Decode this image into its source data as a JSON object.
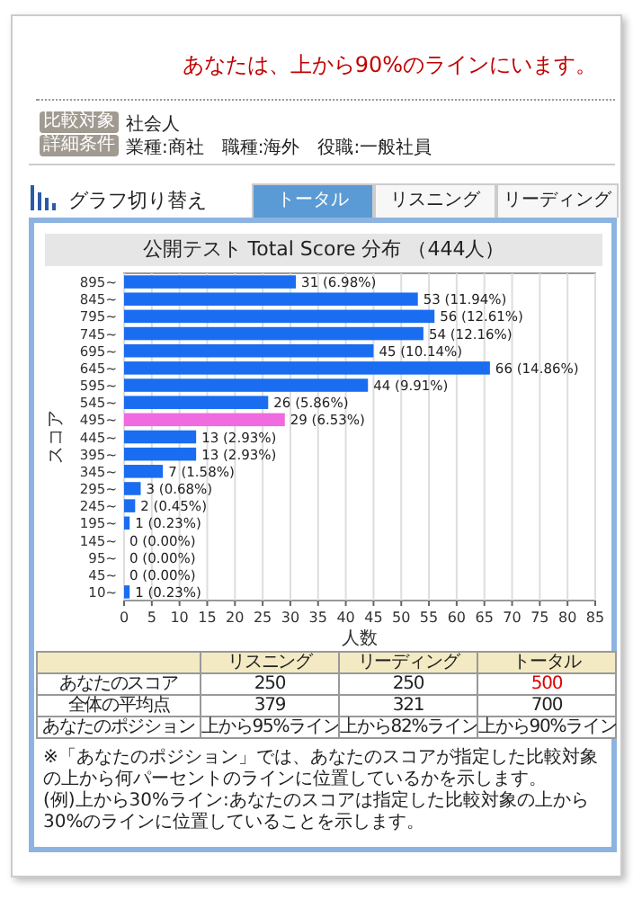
{
  "chart_data": {
    "type": "bar",
    "orientation": "horizontal",
    "title": "公開テスト Total Score 分布 （444人）",
    "xlabel": "人数",
    "ylabel": "スコア",
    "categories": [
      "895~",
      "845~",
      "795~",
      "745~",
      "695~",
      "645~",
      "595~",
      "545~",
      "495~",
      "445~",
      "395~",
      "345~",
      "295~",
      "245~",
      "195~",
      "145~",
      "95~",
      "45~",
      "10~"
    ],
    "values": [
      31,
      53,
      56,
      54,
      45,
      66,
      44,
      26,
      29,
      13,
      13,
      7,
      3,
      2,
      1,
      0,
      0,
      0,
      1
    ],
    "colors": [
      "#1a6df0",
      "#1a6df0",
      "#1a6df0",
      "#1a6df0",
      "#1a6df0",
      "#1a6df0",
      "#1a6df0",
      "#1a6df0",
      "#f06ae0",
      "#1a6df0",
      "#1a6df0",
      "#1a6df0",
      "#1a6df0",
      "#1a6df0",
      "#1a6df0",
      "#1a6df0",
      "#1a6df0",
      "#1a6df0",
      "#1a6df0"
    ],
    "value_labels": [
      "31 (6.98%)",
      "53 (11.94%)",
      "56 (12.61%)",
      "54 (12.16%)",
      "45 (10.14%)",
      "66 (14.86%)",
      "44 (9.91%)",
      "26 (5.86%)",
      "29 (6.53%)",
      "13 (2.93%)",
      "13 (2.93%)",
      "7 (1.58%)",
      "3 (0.68%)",
      "2 (0.45%)",
      "1 (0.23%)",
      "0 (0.00%)",
      "0 (0.00%)",
      "0 (0.00%)",
      "1 (0.23%)"
    ],
    "xlim": [
      0,
      85
    ],
    "xticks": [
      0,
      5,
      10,
      15,
      20,
      25,
      30,
      35,
      40,
      45,
      50,
      55,
      60,
      65,
      70,
      75,
      80,
      85
    ],
    "grid": "x",
    "annotations": [
      "あなたは、上から90%のラインにいます。",
      "比較対象",
      "社会人",
      "詳細条件",
      "業種:商社　職種:海外　役職:一般社員",
      "グラフ切り替え",
      "トータル",
      "リスニング",
      "リーディング",
      "リスニング",
      "リーディング",
      "トータル",
      "あなたのスコア",
      "250",
      "250",
      "500",
      "全体の平均点",
      "379",
      "321",
      "700",
      "あなたのポジション",
      "上から95%ライン",
      "上から82%ライン",
      "上から90%ライン",
      "※「あなたのポジション」では、あなたのスコアが指定した比較対象の上から何パーセントのラインに位置しているかを示します。",
      "(例)上から30%ライン:あなたのスコアは指定した比較対象の上から30%のラインに位置していることを示します。"
    ]
  }
}
